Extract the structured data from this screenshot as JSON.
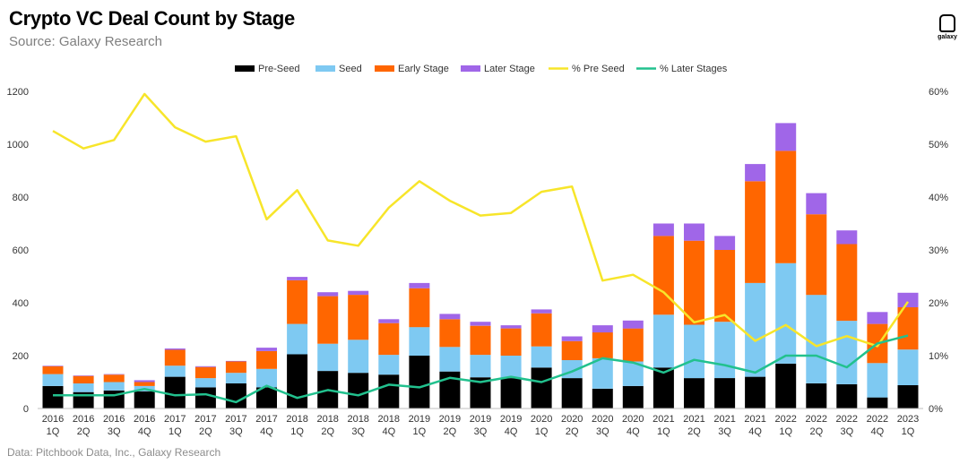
{
  "header": {
    "title": "Crypto VC Deal Count by Stage",
    "subtitle": "Source: Galaxy Research",
    "logo_text": "galaxy"
  },
  "footer": {
    "note": "Data: Pitchbook Data, Inc., Galaxy Research"
  },
  "colors": {
    "pre_seed": "#000000",
    "seed": "#7ec9f2",
    "early_stage": "#ff6600",
    "later_stage": "#a066e8",
    "pct_pre_seed": "#f7e52a",
    "pct_later_stages": "#22c18e"
  },
  "chart_data": {
    "type": "bar",
    "stacked": true,
    "title": "Crypto VC Deal Count by Stage",
    "xlabel": "",
    "ylabel": "",
    "ylim": [
      0,
      1200
    ],
    "y_ticks": [
      0,
      200,
      400,
      600,
      800,
      1000,
      1200
    ],
    "y2lim": [
      0,
      0.6
    ],
    "y2_ticks": [
      "0%",
      "10%",
      "20%",
      "30%",
      "40%",
      "50%",
      "60%"
    ],
    "grid": false,
    "legend_position": "top-center",
    "categories": [
      [
        "2016",
        "1Q"
      ],
      [
        "2016",
        "2Q"
      ],
      [
        "2016",
        "3Q"
      ],
      [
        "2016",
        "4Q"
      ],
      [
        "2017",
        "1Q"
      ],
      [
        "2017",
        "2Q"
      ],
      [
        "2017",
        "3Q"
      ],
      [
        "2017",
        "4Q"
      ],
      [
        "2018",
        "1Q"
      ],
      [
        "2018",
        "2Q"
      ],
      [
        "2018",
        "3Q"
      ],
      [
        "2018",
        "4Q"
      ],
      [
        "2019",
        "1Q"
      ],
      [
        "2019",
        "2Q"
      ],
      [
        "2019",
        "3Q"
      ],
      [
        "2019",
        "4Q"
      ],
      [
        "2020",
        "1Q"
      ],
      [
        "2020",
        "2Q"
      ],
      [
        "2020",
        "3Q"
      ],
      [
        "2020",
        "4Q"
      ],
      [
        "2021",
        "1Q"
      ],
      [
        "2021",
        "2Q"
      ],
      [
        "2021",
        "3Q"
      ],
      [
        "2021",
        "4Q"
      ],
      [
        "2022",
        "1Q"
      ],
      [
        "2022",
        "2Q"
      ],
      [
        "2022",
        "3Q"
      ],
      [
        "2022",
        "4Q"
      ],
      [
        "2023",
        "1Q"
      ]
    ],
    "series": [
      {
        "name": "Pre-Seed",
        "kind": "bar",
        "color_key": "pre_seed",
        "values": [
          85,
          62,
          68,
          65,
          120,
          80,
          95,
          80,
          205,
          142,
          135,
          128,
          200,
          140,
          118,
          115,
          155,
          115,
          75,
          85,
          155,
          115,
          115,
          120,
          170,
          95,
          92,
          42,
          88
        ]
      },
      {
        "name": "Seed",
        "kind": "bar",
        "color_key": "seed",
        "values": [
          45,
          33,
          32,
          20,
          42,
          35,
          40,
          70,
          115,
          103,
          125,
          75,
          108,
          93,
          85,
          85,
          80,
          68,
          115,
          93,
          200,
          202,
          213,
          355,
          380,
          335,
          240,
          130,
          135
        ]
      },
      {
        "name": "Early Stage",
        "kind": "bar",
        "color_key": "early_stage",
        "values": [
          30,
          28,
          28,
          15,
          60,
          42,
          43,
          67,
          165,
          180,
          170,
          120,
          147,
          105,
          110,
          103,
          125,
          72,
          98,
          125,
          298,
          318,
          272,
          385,
          425,
          305,
          290,
          148,
          160
        ]
      },
      {
        "name": "Later Stage",
        "kind": "bar",
        "color_key": "later_stage",
        "values": [
          2,
          2,
          2,
          7,
          5,
          3,
          2,
          13,
          13,
          15,
          15,
          15,
          20,
          20,
          15,
          12,
          15,
          18,
          27,
          30,
          47,
          65,
          53,
          65,
          105,
          80,
          52,
          45,
          55
        ]
      },
      {
        "name": "% Pre Seed",
        "kind": "line",
        "axis": "right",
        "color_key": "pct_pre_seed",
        "values": [
          0.525,
          0.492,
          0.508,
          0.595,
          0.532,
          0.505,
          0.515,
          0.358,
          0.413,
          0.318,
          0.308,
          0.38,
          0.43,
          0.393,
          0.365,
          0.37,
          0.41,
          0.42,
          0.242,
          0.253,
          0.22,
          0.163,
          0.177,
          0.128,
          0.158,
          0.118,
          0.137,
          0.118,
          0.202
        ]
      },
      {
        "name": "% Later Stages",
        "kind": "line",
        "axis": "right",
        "color_key": "pct_later_stages",
        "values": [
          0.025,
          0.025,
          0.025,
          0.037,
          0.025,
          0.027,
          0.012,
          0.043,
          0.02,
          0.035,
          0.025,
          0.045,
          0.04,
          0.058,
          0.05,
          0.06,
          0.05,
          0.07,
          0.095,
          0.087,
          0.068,
          0.092,
          0.082,
          0.068,
          0.1,
          0.1,
          0.078,
          0.123,
          0.138
        ]
      }
    ]
  }
}
